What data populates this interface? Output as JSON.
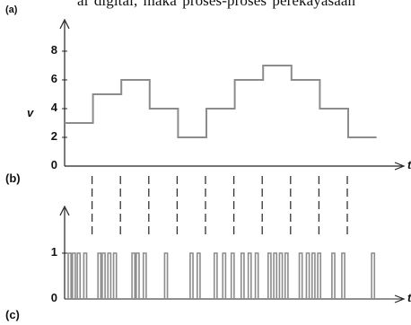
{
  "page": {
    "top_text": "al digital, maka proses-proses  perekayasaan"
  },
  "panels": {
    "a": "(a)",
    "b": "(b)",
    "c": "(c)"
  },
  "axes": {
    "y_label": "v",
    "t_label": "t",
    "y_ticks_a": [
      "8",
      "6",
      "4",
      "2",
      "0"
    ],
    "y_ticks_c": [
      "1",
      "0"
    ]
  },
  "chart_data": [
    {
      "type": "line",
      "panel": "a",
      "title": "",
      "xlabel": "t",
      "ylabel": "v",
      "ylim": [
        0,
        9
      ],
      "yticks": [
        0,
        2,
        4,
        6,
        8
      ],
      "steps": [
        {
          "t": [
            0,
            1
          ],
          "v": 3
        },
        {
          "t": [
            1,
            2
          ],
          "v": 5
        },
        {
          "t": [
            2,
            3
          ],
          "v": 6
        },
        {
          "t": [
            3,
            4
          ],
          "v": 4
        },
        {
          "t": [
            4,
            5
          ],
          "v": 2
        },
        {
          "t": [
            5,
            6
          ],
          "v": 4
        },
        {
          "t": [
            6,
            7
          ],
          "v": 6
        },
        {
          "t": [
            7,
            8
          ],
          "v": 7
        },
        {
          "t": [
            8,
            9
          ],
          "v": 6
        },
        {
          "t": [
            9,
            10
          ],
          "v": 4
        },
        {
          "t": [
            10,
            11
          ],
          "v": 2
        }
      ]
    },
    {
      "type": "line",
      "panel": "c",
      "title": "",
      "xlabel": "t",
      "ylabel": "",
      "ylim": [
        0,
        1
      ],
      "yticks": [
        0,
        1
      ],
      "pulses": [
        {
          "t": [
            0.0,
            0.1
          ]
        },
        {
          "t": [
            0.15,
            0.25
          ]
        },
        {
          "t": [
            0.32,
            0.42
          ]
        },
        {
          "t": [
            0.55,
            0.65
          ]
        },
        {
          "t": [
            1.05,
            1.15
          ]
        },
        {
          "t": [
            1.2,
            1.3
          ]
        },
        {
          "t": [
            1.4,
            1.5
          ]
        },
        {
          "t": [
            1.6,
            1.7
          ]
        },
        {
          "t": [
            2.25,
            2.35
          ]
        },
        {
          "t": [
            2.4,
            2.5
          ]
        },
        {
          "t": [
            2.65,
            2.75
          ]
        },
        {
          "t": [
            3.4,
            3.5
          ]
        },
        {
          "t": [
            4.3,
            4.4
          ]
        },
        {
          "t": [
            4.55,
            4.65
          ]
        },
        {
          "t": [
            5.15,
            5.25
          ]
        },
        {
          "t": [
            5.45,
            5.55
          ]
        },
        {
          "t": [
            5.75,
            5.85
          ]
        },
        {
          "t": [
            6.1,
            6.2
          ]
        },
        {
          "t": [
            6.35,
            6.45
          ]
        },
        {
          "t": [
            6.6,
            6.7
          ]
        },
        {
          "t": [
            7.05,
            7.15
          ]
        },
        {
          "t": [
            7.25,
            7.35
          ]
        },
        {
          "t": [
            7.45,
            7.55
          ]
        },
        {
          "t": [
            7.65,
            7.75
          ]
        },
        {
          "t": [
            8.15,
            8.25
          ]
        },
        {
          "t": [
            8.4,
            8.5
          ]
        },
        {
          "t": [
            8.6,
            8.7
          ]
        },
        {
          "t": [
            8.8,
            8.9
          ]
        },
        {
          "t": [
            9.3,
            9.4
          ]
        },
        {
          "t": [
            9.65,
            9.75
          ]
        },
        {
          "t": [
            10.7,
            10.8
          ]
        }
      ]
    }
  ],
  "sample_markers": [
    1,
    2,
    3,
    4,
    5,
    6,
    7,
    8,
    9,
    10
  ],
  "colors": {
    "axis": "#222222",
    "signal": "#8c8c8c",
    "dash": "#333333"
  }
}
